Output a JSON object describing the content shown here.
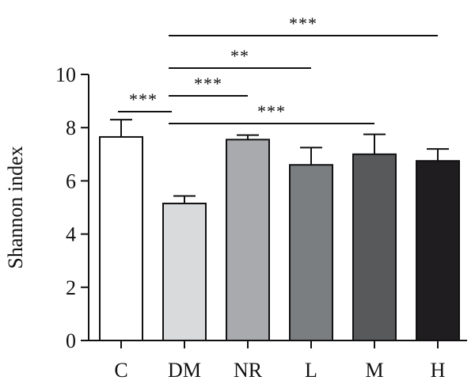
{
  "chart_data": {
    "type": "bar",
    "title": "",
    "xlabel": "",
    "ylabel": "Shannon index",
    "ylim": [
      0,
      10
    ],
    "yticks": [
      0,
      2,
      4,
      6,
      8,
      10
    ],
    "grid": false,
    "categories": [
      "C",
      "DM",
      "NR",
      "L",
      "M",
      "H"
    ],
    "values": [
      7.65,
      5.15,
      7.55,
      6.6,
      7.0,
      6.75
    ],
    "errors": [
      0.65,
      0.28,
      0.17,
      0.65,
      0.75,
      0.45
    ],
    "colors": [
      "#ffffff",
      "#d9dadc",
      "#a9aaad",
      "#7b7e80",
      "#57595b",
      "#1f1d1f"
    ],
    "significance": [
      {
        "from": "DM",
        "to": "H",
        "label": "***"
      },
      {
        "from": "DM",
        "to": "L",
        "label": "**"
      },
      {
        "from": "C",
        "to": "DM",
        "label": "***"
      },
      {
        "from": "DM",
        "to": "NR",
        "label": "***"
      },
      {
        "from": "DM",
        "to": "M",
        "label": "***"
      }
    ]
  }
}
